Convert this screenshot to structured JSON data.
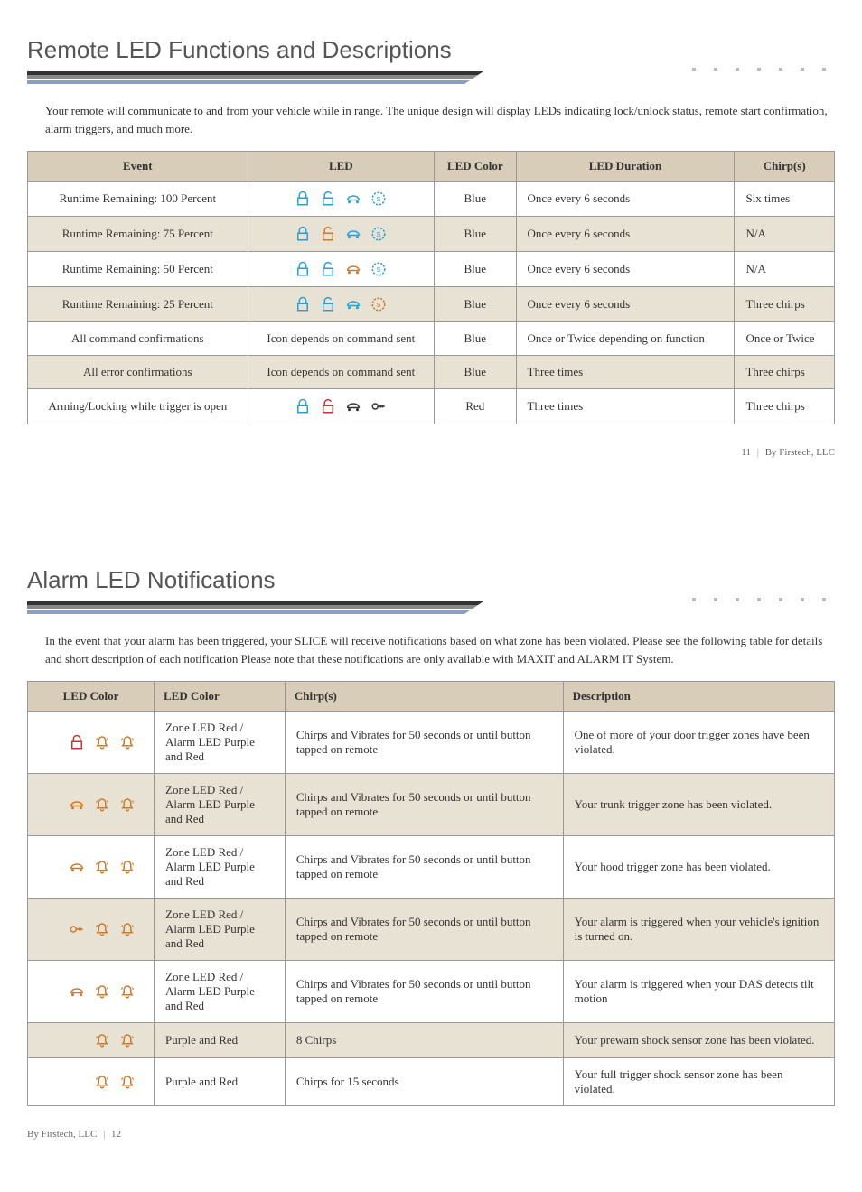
{
  "section1": {
    "title": "Remote LED Functions and Descriptions",
    "intro": "Your remote will communicate to and from your vehicle while in range. The unique design will display LEDs indicating lock/unlock status, remote start confirmation, alarm triggers, and much more.",
    "headers": [
      "Event",
      "LED",
      "LED Color",
      "LED Duration",
      "Chirp(s)"
    ],
    "rows": [
      {
        "event": "Runtime Remaining: 100 Percent",
        "icons": [
          "lock",
          "unlock",
          "trunk",
          "start"
        ],
        "iconColors": [
          "#2a9fd6",
          "#2a9fd6",
          "#2a9fd6",
          "#2a9fd6"
        ],
        "color": "Blue",
        "duration": "Once every 6 seconds",
        "chirps": "Six times",
        "alt": false
      },
      {
        "event": "Runtime Remaining: 75 Percent",
        "icons": [
          "lock",
          "unlock",
          "trunk",
          "start"
        ],
        "iconColors": [
          "#2a9fd6",
          "#cc7a2a",
          "#2a9fd6",
          "#2a9fd6"
        ],
        "color": "Blue",
        "duration": "Once every 6 seconds",
        "chirps": "N/A",
        "alt": true
      },
      {
        "event": "Runtime Remaining: 50 Percent",
        "icons": [
          "lock",
          "unlock",
          "trunk",
          "start"
        ],
        "iconColors": [
          "#2a9fd6",
          "#2a9fd6",
          "#cc7a2a",
          "#2a9fd6"
        ],
        "color": "Blue",
        "duration": "Once every 6 seconds",
        "chirps": "N/A",
        "alt": false
      },
      {
        "event": "Runtime Remaining: 25 Percent",
        "icons": [
          "lock",
          "unlock",
          "trunk",
          "start"
        ],
        "iconColors": [
          "#2a9fd6",
          "#2a9fd6",
          "#2a9fd6",
          "#cc7a2a"
        ],
        "color": "Blue",
        "duration": "Once every 6 seconds",
        "chirps": "Three chirps",
        "alt": true
      },
      {
        "event": "All command confirmations",
        "led_text": "Icon depends on command sent",
        "color": "Blue",
        "duration": "Once or Twice depending on function",
        "chirps": "Once or Twice",
        "alt": false
      },
      {
        "event": "All error confirmations",
        "led_text": "Icon depends on command sent",
        "color": "Blue",
        "duration": "Three times",
        "chirps": "Three chirps",
        "alt": true
      },
      {
        "event": "Arming/Locking while trigger is open",
        "icons": [
          "lock",
          "unlock",
          "trunk",
          "key"
        ],
        "iconColors": [
          "#2a9fd6",
          "#cc3333",
          "#333",
          "#333"
        ],
        "color": "Red",
        "duration": "Three times",
        "chirps": "Three chirps",
        "alt": false
      }
    ],
    "footer_page": "11",
    "footer_text": "By Firstech, LLC"
  },
  "section2": {
    "title": "Alarm LED Notifications",
    "intro": "In the event that your alarm has been triggered, your SLICE will receive notifications based on what zone has been violated. Please see the following table for details and short description of each notification Please note that these notifications are only available with MAXIT and ALARM IT System.",
    "headers": [
      "LED Color",
      "LED Color",
      "Chirp(s)",
      "Description"
    ],
    "rows": [
      {
        "icons": [
          "lock",
          "alarm",
          "alarm"
        ],
        "iconColors": [
          "#cc3333",
          "#cc7a2a",
          "#cc7a2a"
        ],
        "led": "Zone LED Red /\nAlarm LED Purple and Red",
        "chirps": "Chirps and Vibrates for 50 seconds or until button tapped on remote",
        "desc": "One of more of your door trigger zones have been violated.",
        "alt": false
      },
      {
        "icons": [
          "trunk",
          "alarm",
          "alarm"
        ],
        "iconColors": [
          "#cc7a2a",
          "#cc7a2a",
          "#cc7a2a"
        ],
        "led": "Zone LED Red /\nAlarm LED Purple and Red",
        "chirps": "Chirps and Vibrates for 50 seconds or until button tapped on remote",
        "desc": "Your trunk trigger zone has been violated.",
        "alt": true
      },
      {
        "icons": [
          "trunk",
          "alarm",
          "alarm"
        ],
        "iconColors": [
          "#cc7a2a",
          "#cc7a2a",
          "#cc7a2a"
        ],
        "led": "Zone LED Red /\nAlarm LED Purple and Red",
        "chirps": "Chirps and Vibrates for 50 seconds or until button tapped on remote",
        "desc": "Your hood trigger zone has been violated.",
        "alt": false
      },
      {
        "icons": [
          "key",
          "alarm",
          "alarm"
        ],
        "iconColors": [
          "#cc7a2a",
          "#cc7a2a",
          "#cc7a2a"
        ],
        "led": "Zone LED Red /\nAlarm LED Purple and Red",
        "chirps": "Chirps and Vibrates for 50 seconds or until button tapped on remote",
        "desc": "Your alarm is triggered when your vehicle's ignition is turned on.",
        "alt": true
      },
      {
        "icons": [
          "trunk",
          "alarm",
          "alarm"
        ],
        "iconColors": [
          "#cc7a2a",
          "#cc7a2a",
          "#cc7a2a"
        ],
        "led": "Zone LED Red /\nAlarm LED Purple and Red",
        "chirps": "Chirps and Vibrates for 50 seconds or until button tapped on remote",
        "desc": "Your alarm is triggered when your DAS detects tilt motion",
        "alt": false
      },
      {
        "icons": [
          "alarm",
          "alarm"
        ],
        "iconColors": [
          "#cc7a2a",
          "#cc7a2a"
        ],
        "led": "Purple and Red",
        "chirps": "8 Chirps",
        "desc": "Your prewarn shock sensor zone has been violated.",
        "alt": true
      },
      {
        "icons": [
          "alarm",
          "alarm"
        ],
        "iconColors": [
          "#cc7a2a",
          "#cc7a2a"
        ],
        "led": "Purple and Red",
        "chirps": "Chirps for 15 seconds",
        "desc": "Your full trigger shock sensor zone has been violated.",
        "alt": false
      }
    ],
    "footer_text": "By Firstech, LLC",
    "footer_page": "12"
  }
}
